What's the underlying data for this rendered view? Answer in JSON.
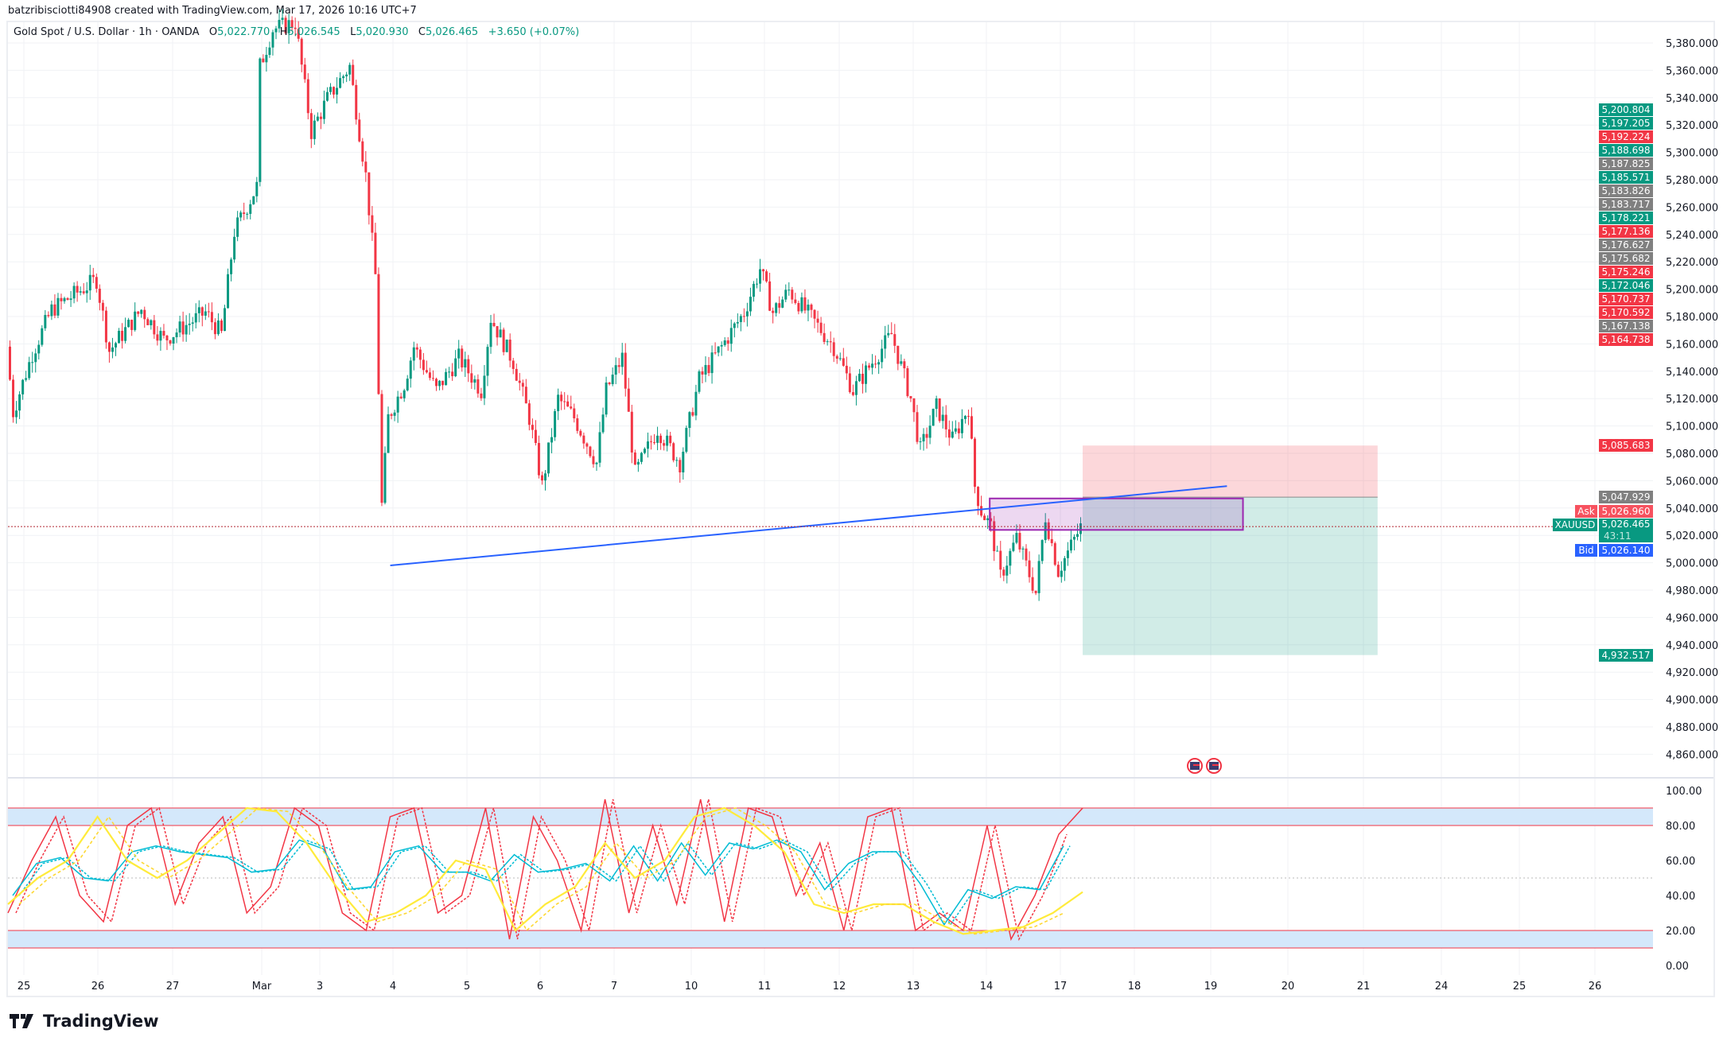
{
  "header": {
    "creator": "batzribisciotti84908 created with TradingView.com, Mar 17, 2026 10:16 UTC+7"
  },
  "legend": {
    "symbol": "Gold Spot / U.S. Dollar · 1h · OANDA",
    "o_label": "O",
    "open": "5,022.770",
    "h_label": "H",
    "high": "5,026.545",
    "l_label": "L",
    "low": "5,020.930",
    "c_label": "C",
    "close": "5,026.465",
    "change": "+3.650 (+0.07%)"
  },
  "colors": {
    "up": "#089981",
    "down": "#f23645",
    "gray": "#808080",
    "bid": "#2962ff",
    "trendline": "#2962ff",
    "zone": "#9c27b0"
  },
  "price_axis": {
    "ticks": [
      "5,380.000",
      "5,360.000",
      "5,340.000",
      "5,320.000",
      "5,300.000",
      "5,280.000",
      "5,260.000",
      "5,240.000",
      "5,220.000",
      "5,200.000",
      "5,180.000",
      "5,160.000",
      "5,140.000",
      "5,120.000",
      "5,100.000",
      "5,080.000",
      "5,060.000",
      "5,040.000",
      "5,020.000",
      "5,000.000",
      "4,980.000",
      "4,960.000",
      "4,940.000",
      "4,920.000",
      "4,900.000",
      "4,880.000",
      "4,860.000"
    ]
  },
  "stacked_labels": [
    {
      "text": "5,200.804",
      "color": "#089981"
    },
    {
      "text": "5,197.205",
      "color": "#089981"
    },
    {
      "text": "5,192.224",
      "color": "#f23645"
    },
    {
      "text": "5,188.698",
      "color": "#089981"
    },
    {
      "text": "5,187.825",
      "color": "#808080"
    },
    {
      "text": "5,185.571",
      "color": "#089981"
    },
    {
      "text": "5,183.826",
      "color": "#808080"
    },
    {
      "text": "5,183.717",
      "color": "#808080"
    },
    {
      "text": "5,178.221",
      "color": "#089981"
    },
    {
      "text": "5,177.136",
      "color": "#f23645"
    },
    {
      "text": "5,176.627",
      "color": "#808080"
    },
    {
      "text": "5,175.682",
      "color": "#808080"
    },
    {
      "text": "5,175.246",
      "color": "#f23645"
    },
    {
      "text": "5,172.046",
      "color": "#089981"
    },
    {
      "text": "5,170.737",
      "color": "#f23645"
    },
    {
      "text": "5,170.592",
      "color": "#f23645"
    },
    {
      "text": "5,167.138",
      "color": "#808080"
    },
    {
      "text": "5,164.738",
      "color": "#f23645"
    }
  ],
  "position": {
    "stop": "5,085.683",
    "entry": "5,047.929",
    "target": "4,932.517",
    "stop_v": 5085.683,
    "entry_v": 5047.929,
    "target_v": 4932.517
  },
  "quote": {
    "ask_label": "Ask",
    "ask": "5,026.960",
    "symbol": "XAUUSD",
    "last": "5,026.465",
    "countdown": "43:11",
    "bid_label": "Bid",
    "bid": "5,026.140",
    "last_v": 5026.465
  },
  "drawings": {
    "trendline": [
      [
        119,
        4998
      ],
      [
        380,
        5056
      ]
    ],
    "zone": {
      "from": 306,
      "to": 385,
      "top": 5047,
      "bottom": 5024
    },
    "position_from": 335,
    "position_to": 427
  },
  "time_axis": [
    "25",
    "26",
    "27",
    "Mar",
    "3",
    "4",
    "5",
    "6",
    "7",
    "10",
    "11",
    "12",
    "13",
    "14",
    "17",
    "18",
    "19",
    "20",
    "21",
    "24",
    "25",
    "26"
  ],
  "oscillator": {
    "ticks": [
      "100.00",
      "80.00",
      "60.00",
      "40.00",
      "20.00",
      "0.00"
    ],
    "bands": [
      [
        80,
        90
      ],
      [
        10,
        20
      ]
    ],
    "fast": [
      30,
      60,
      85,
      40,
      25,
      80,
      90,
      35,
      70,
      85,
      30,
      45,
      90,
      80,
      30,
      20,
      85,
      90,
      30,
      40,
      90,
      15,
      85,
      60,
      20,
      95,
      30,
      80,
      35,
      95,
      25,
      90,
      85,
      40,
      70,
      20,
      85,
      90,
      20,
      30,
      20,
      80,
      15,
      40,
      75,
      90
    ],
    "slow": [
      35,
      50,
      60,
      85,
      60,
      50,
      60,
      75,
      90,
      88,
      70,
      45,
      25,
      30,
      40,
      60,
      55,
      20,
      35,
      45,
      70,
      50,
      60,
      85,
      90,
      80,
      65,
      35,
      30,
      35,
      35,
      25,
      18,
      20,
      22,
      30,
      42
    ]
  },
  "price_path": [
    [
      0,
      5158
    ],
    [
      2,
      5110
    ],
    [
      8,
      5153
    ],
    [
      14,
      5185
    ],
    [
      28,
      5207
    ],
    [
      32,
      5155
    ],
    [
      42,
      5185
    ],
    [
      49,
      5163
    ],
    [
      62,
      5183
    ],
    [
      67,
      5167
    ],
    [
      71,
      5242
    ],
    [
      78,
      5275
    ],
    [
      79,
      5363
    ],
    [
      83,
      5390
    ],
    [
      90,
      5395
    ],
    [
      95,
      5315
    ],
    [
      100,
      5339
    ],
    [
      107,
      5363
    ],
    [
      112,
      5283
    ],
    [
      115,
      5210
    ],
    [
      117,
      5042
    ],
    [
      119,
      5106
    ],
    [
      124,
      5131
    ],
    [
      127,
      5158
    ],
    [
      134,
      5126
    ],
    [
      141,
      5150
    ],
    [
      148,
      5126
    ],
    [
      151,
      5179
    ],
    [
      158,
      5147
    ],
    [
      163,
      5106
    ],
    [
      167,
      5056
    ],
    [
      172,
      5120
    ],
    [
      177,
      5106
    ],
    [
      184,
      5073
    ],
    [
      187,
      5126
    ],
    [
      192,
      5150
    ],
    [
      196,
      5065
    ],
    [
      203,
      5098
    ],
    [
      210,
      5073
    ],
    [
      216,
      5134
    ],
    [
      223,
      5158
    ],
    [
      230,
      5183
    ],
    [
      235,
      5215
    ],
    [
      239,
      5183
    ],
    [
      244,
      5199
    ],
    [
      251,
      5179
    ],
    [
      258,
      5158
    ],
    [
      264,
      5126
    ],
    [
      271,
      5150
    ],
    [
      276,
      5167
    ],
    [
      282,
      5120
    ],
    [
      285,
      5082
    ],
    [
      290,
      5114
    ],
    [
      295,
      5090
    ],
    [
      300,
      5114
    ],
    [
      302,
      5056
    ],
    [
      304,
      5038
    ],
    [
      307,
      5026
    ],
    [
      310,
      4990
    ],
    [
      315,
      5018
    ],
    [
      321,
      4978
    ],
    [
      324,
      5034
    ],
    [
      328,
      4994
    ],
    [
      335,
      5026
    ]
  ],
  "events": [
    "us-flag-icon",
    "us-flag-icon"
  ],
  "footer": {
    "brand": "TradingView"
  }
}
